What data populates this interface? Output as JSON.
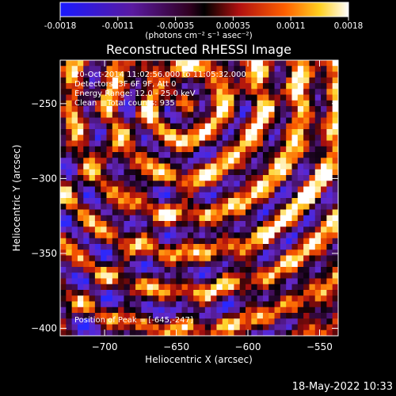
{
  "colorbar": {
    "tick_labels": [
      "-0.0018",
      "-0.0011",
      "-0.00035",
      "0.00035",
      "0.0011",
      "0.0018"
    ],
    "unit_label": "(photons cm⁻² s⁻¹ asec⁻²)",
    "range": [
      -0.0018,
      0.0018
    ]
  },
  "chart_data": {
    "type": "heatmap",
    "title": "Reconstructed RHESSI Image",
    "xlabel": "Heliocentric X (arcsec)",
    "ylabel": "Heliocentric Y (arcsec)",
    "xlim": [
      -731,
      -537
    ],
    "ylim": [
      -405,
      -221
    ],
    "x_ticks": [
      -700,
      -650,
      -600,
      -550
    ],
    "y_ticks": [
      -250,
      -300,
      -350,
      -400
    ],
    "x_tick_labels": [
      "−700",
      "−650",
      "−600",
      "−550"
    ],
    "y_tick_labels": [
      "−250",
      "−300",
      "−350",
      "−400"
    ],
    "peak": [
      -645,
      -247
    ],
    "color_scale": "rhessi-diverging (blue-black-red-yellow-white)",
    "annotations": [
      "20-Oct-2014 11:02:56.000 to 11:05:32.000",
      "Detectors: 3F 6F 9F, Att 0",
      "Energy Range: 12.0 - 25.0 keV",
      "Clean    Total counts: 935"
    ],
    "peak_label": "Position of Peak = [-645,-247]"
  },
  "timestamp": "18-May-2022 10:33"
}
